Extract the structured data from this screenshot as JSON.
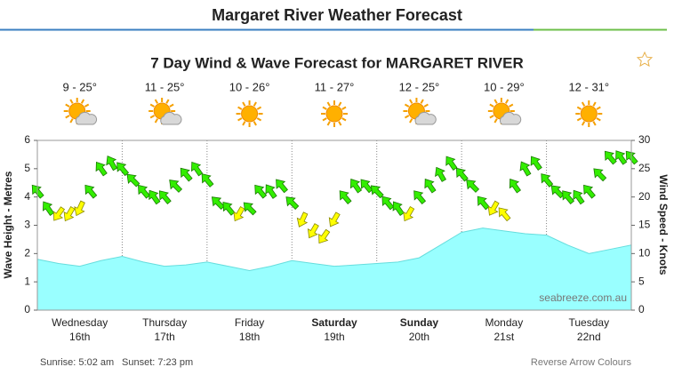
{
  "header": {
    "title": "Margaret River Weather Forecast"
  },
  "footer": {
    "sunrise": "Sunrise: 5:02 am",
    "sunset": "Sunset: 7:23 pm",
    "reverse_link": "Reverse Arrow Colours"
  },
  "chart_data": {
    "type": "line",
    "title": "7 Day Wind & Wave Forecast for MARGARET RIVER",
    "ylabel": "Wave Height - Metres",
    "y2label": "Wind Speed - Knots",
    "watermark": "seabreeze.com.au",
    "xlim": [
      0,
      168
    ],
    "ylim": [
      0,
      6
    ],
    "yticks": [
      0,
      1,
      2,
      3,
      4,
      5,
      6
    ],
    "y2lim": [
      0,
      30
    ],
    "y2ticks": [
      0,
      5,
      10,
      15,
      20,
      25,
      30
    ],
    "days": [
      {
        "name": "Wednesday",
        "date": "16th",
        "temp": "9 - 25°",
        "weather": "partly-cloudy",
        "bold": false
      },
      {
        "name": "Thursday",
        "date": "17th",
        "temp": "11 - 25°",
        "weather": "partly-cloudy",
        "bold": false
      },
      {
        "name": "Friday",
        "date": "18th",
        "temp": "10 - 26°",
        "weather": "sunny",
        "bold": false
      },
      {
        "name": "Saturday",
        "date": "19th",
        "temp": "11 - 27°",
        "weather": "sunny",
        "bold": true
      },
      {
        "name": "Sunday",
        "date": "20th",
        "temp": "12 - 25°",
        "weather": "partly-cloudy",
        "bold": true
      },
      {
        "name": "Monday",
        "date": "21st",
        "temp": "10 - 29°",
        "weather": "partly-cloudy",
        "bold": false
      },
      {
        "name": "Tuesday",
        "date": "22nd",
        "temp": "12 - 31°",
        "weather": "sunny",
        "bold": false
      }
    ],
    "series": [
      {
        "style": "area",
        "axis": "y",
        "color": "#99ffff",
        "stroke": "#66dddd",
        "x": [
          0,
          6,
          12,
          18,
          24,
          30,
          36,
          42,
          48,
          54,
          60,
          66,
          72,
          78,
          84,
          90,
          96,
          102,
          108,
          114,
          120,
          126,
          132,
          138,
          144,
          150,
          156,
          162,
          168
        ],
        "values": [
          1.8,
          1.65,
          1.55,
          1.75,
          1.9,
          1.7,
          1.55,
          1.6,
          1.7,
          1.55,
          1.4,
          1.55,
          1.75,
          1.65,
          1.55,
          1.6,
          1.65,
          1.7,
          1.85,
          2.3,
          2.75,
          2.9,
          2.8,
          2.7,
          2.65,
          2.3,
          2.0,
          2.15,
          2.3
        ]
      },
      {
        "style": "arrows",
        "axis": "y2",
        "color": "#33ee00",
        "offshore_color": "#ffff00",
        "x": [
          0,
          3,
          6,
          9,
          12,
          15,
          18,
          21,
          24,
          27,
          30,
          33,
          36,
          39,
          42,
          45,
          48,
          51,
          54,
          57,
          60,
          63,
          66,
          69,
          72,
          75,
          78,
          81,
          84,
          87,
          90,
          93,
          96,
          99,
          102,
          105,
          108,
          111,
          114,
          117,
          120,
          123,
          126,
          129,
          132,
          135,
          138,
          141,
          144,
          147,
          150,
          153,
          156,
          159,
          162,
          165,
          168
        ],
        "values": [
          21,
          18,
          17,
          17,
          18,
          21,
          25,
          26,
          25,
          23,
          21,
          20,
          20,
          22,
          24,
          25,
          23,
          19,
          18,
          17,
          18,
          21,
          21,
          22,
          19,
          16,
          14,
          13,
          16,
          20,
          22,
          22,
          21,
          19,
          18,
          17,
          20,
          22,
          24,
          26,
          24,
          22,
          19,
          18,
          17,
          22,
          25,
          26,
          23,
          21,
          20,
          20,
          21,
          24,
          27,
          27,
          27
        ],
        "directions": [
          320,
          325,
          215,
          210,
          205,
          320,
          325,
          330,
          320,
          315,
          320,
          325,
          320,
          315,
          320,
          325,
          320,
          315,
          320,
          210,
          315,
          320,
          325,
          320,
          315,
          205,
          210,
          215,
          210,
          320,
          325,
          320,
          315,
          320,
          325,
          210,
          320,
          325,
          330,
          325,
          320,
          315,
          320,
          210,
          320,
          325,
          330,
          325,
          320,
          315,
          320,
          325,
          320,
          315,
          320,
          325,
          320
        ],
        "offshore": [
          false,
          false,
          true,
          true,
          true,
          false,
          false,
          false,
          false,
          false,
          false,
          false,
          false,
          false,
          false,
          false,
          false,
          false,
          false,
          true,
          false,
          false,
          false,
          false,
          false,
          true,
          true,
          true,
          true,
          false,
          false,
          false,
          false,
          false,
          false,
          true,
          false,
          false,
          false,
          false,
          false,
          false,
          false,
          true,
          true,
          false,
          false,
          false,
          false,
          false,
          false,
          false,
          false,
          false,
          false,
          false,
          false
        ]
      }
    ]
  }
}
